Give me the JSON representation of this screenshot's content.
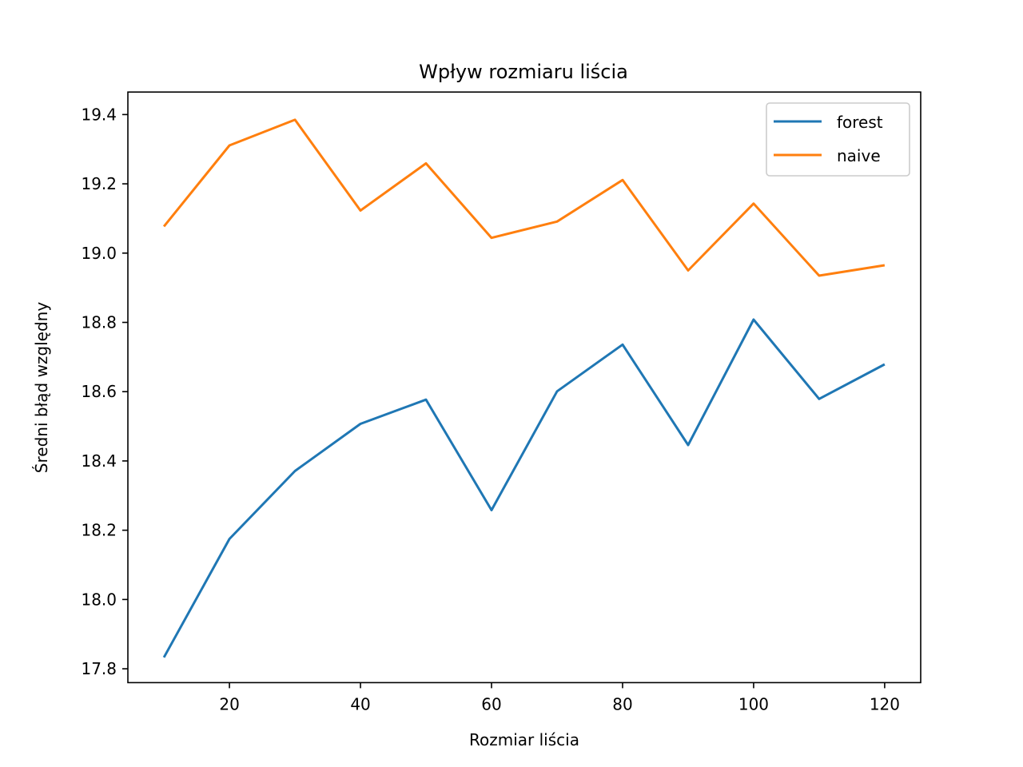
{
  "chart_data": {
    "type": "line",
    "title": "Wpływ rozmiaru liścia",
    "xlabel": "Rozmiar liścia",
    "ylabel": "Średni błąd względny",
    "x": [
      10,
      20,
      30,
      40,
      50,
      60,
      70,
      80,
      90,
      100,
      110,
      120
    ],
    "xlim": [
      4.5,
      125.5
    ],
    "ylim": [
      17.76,
      19.465
    ],
    "xticks": [
      20,
      40,
      60,
      80,
      100,
      120
    ],
    "xtick_labels": [
      "20",
      "40",
      "60",
      "80",
      "100",
      "120"
    ],
    "yticks": [
      17.8,
      18.0,
      18.2,
      18.4,
      18.6,
      18.8,
      19.0,
      19.2,
      19.4
    ],
    "ytick_labels": [
      "17.8",
      "18.0",
      "18.2",
      "18.4",
      "18.6",
      "18.8",
      "19.0",
      "19.2",
      "19.4"
    ],
    "grid": false,
    "legend_position": "top-right",
    "series": [
      {
        "name": "forest",
        "color": "#1f77b4",
        "values": [
          17.833,
          18.175,
          18.371,
          18.507,
          18.577,
          18.258,
          18.601,
          18.736,
          18.446,
          18.808,
          18.579,
          18.679
        ]
      },
      {
        "name": "naive",
        "color": "#ff7f0e",
        "values": [
          19.077,
          19.311,
          19.385,
          19.123,
          19.259,
          19.044,
          19.091,
          19.211,
          18.95,
          19.143,
          18.935,
          18.965
        ]
      }
    ]
  }
}
